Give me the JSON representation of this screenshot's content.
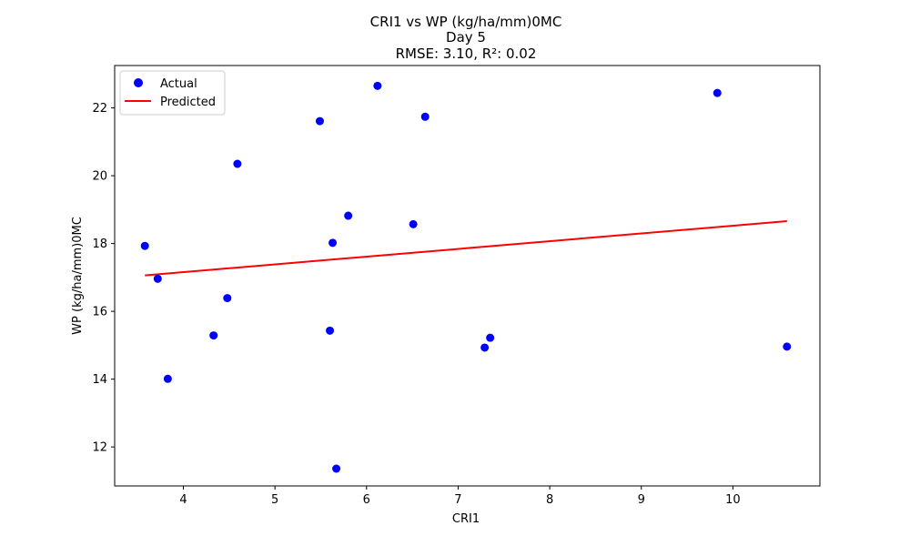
{
  "chart_data": {
    "type": "scatter",
    "title_lines": [
      "CRI1 vs WP (kg/ha/mm)0MC",
      "Day 5",
      "RMSE: 3.10, R²: 0.02"
    ],
    "xlabel": "CRI1",
    "ylabel": "WP (kg/ha/mm)0MC",
    "xlim": [
      3.25,
      10.95
    ],
    "ylim": [
      10.85,
      23.25
    ],
    "xticks": [
      4,
      5,
      6,
      7,
      8,
      9,
      10
    ],
    "yticks": [
      12,
      14,
      16,
      18,
      20,
      22
    ],
    "grid": false,
    "legend_position": "upper-left",
    "series": [
      {
        "name": "Actual",
        "kind": "scatter",
        "color": "#0000ff",
        "points": [
          {
            "x": 3.58,
            "y": 17.93
          },
          {
            "x": 3.72,
            "y": 16.96
          },
          {
            "x": 3.83,
            "y": 14.01
          },
          {
            "x": 4.33,
            "y": 15.29
          },
          {
            "x": 4.48,
            "y": 16.39
          },
          {
            "x": 4.59,
            "y": 20.35
          },
          {
            "x": 5.49,
            "y": 21.61
          },
          {
            "x": 5.6,
            "y": 15.43
          },
          {
            "x": 5.63,
            "y": 18.02
          },
          {
            "x": 5.67,
            "y": 11.36
          },
          {
            "x": 5.8,
            "y": 18.82
          },
          {
            "x": 6.12,
            "y": 22.65
          },
          {
            "x": 6.51,
            "y": 18.57
          },
          {
            "x": 6.64,
            "y": 21.74
          },
          {
            "x": 7.29,
            "y": 14.93
          },
          {
            "x": 7.35,
            "y": 15.22
          },
          {
            "x": 9.83,
            "y": 22.44
          },
          {
            "x": 10.59,
            "y": 14.96
          }
        ]
      },
      {
        "name": "Predicted",
        "kind": "line",
        "color": "#ff0000",
        "points": [
          {
            "x": 3.58,
            "y": 17.06
          },
          {
            "x": 10.59,
            "y": 18.66
          }
        ]
      }
    ]
  }
}
